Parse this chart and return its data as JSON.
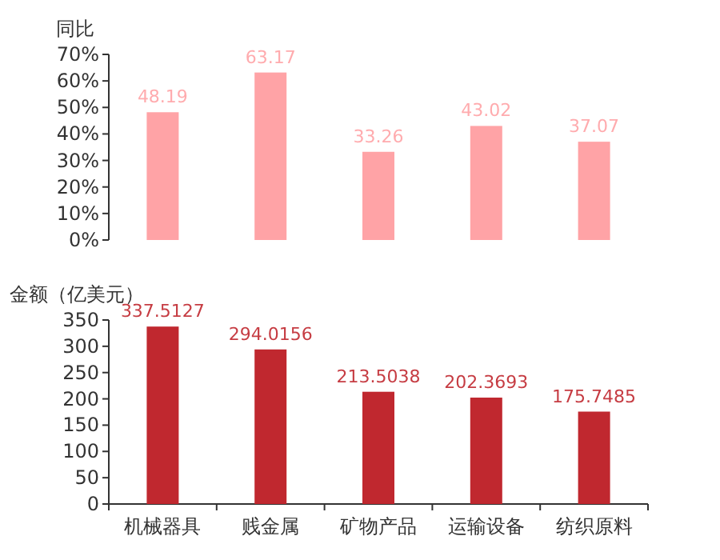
{
  "chart_data": [
    {
      "type": "bar",
      "ylabel": "同比",
      "categories": [
        null,
        null,
        null,
        null,
        null
      ],
      "values": [
        48.19,
        63.17,
        33.26,
        43.02,
        37.07
      ],
      "color": "#ffa3a6",
      "ylim": [
        0,
        70
      ],
      "yticks": [
        {
          "value": 0,
          "label": "0%"
        },
        {
          "value": 10,
          "label": "10%"
        },
        {
          "value": 20,
          "label": "20%"
        },
        {
          "value": 30,
          "label": "30%"
        },
        {
          "value": 40,
          "label": "40%"
        },
        {
          "value": 50,
          "label": "50%"
        },
        {
          "value": 60,
          "label": "60%"
        },
        {
          "value": 70,
          "label": "70%"
        }
      ],
      "data_labels": true,
      "tick_labels": "y",
      "grid": false
    },
    {
      "type": "bar",
      "ylabel": "金额（亿美元）",
      "categories": [
        "机械器具",
        "贱金属",
        "矿物产品",
        "运输设备",
        "纺织原料"
      ],
      "values": [
        337.5127,
        294.0156,
        213.5038,
        202.3693,
        175.7485
      ],
      "color": "#c0282f",
      "ylim": [
        0,
        350
      ],
      "yticks": [
        0,
        50,
        100,
        150,
        200,
        250,
        300,
        350
      ],
      "data_labels": true,
      "grid": false
    }
  ]
}
